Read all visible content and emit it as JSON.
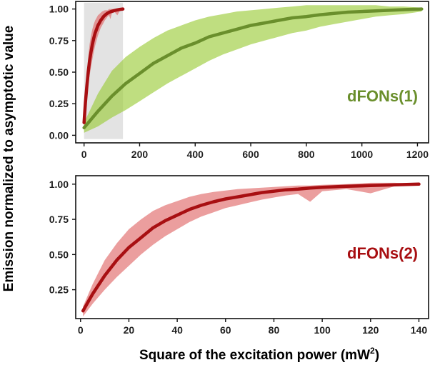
{
  "figure": {
    "shared_ylabel": "Emission normalized to asymptotic value",
    "shared_xlabel": "Square of the excitation power (mW",
    "shared_xlabel_sup": "2",
    "shared_xlabel_end": ")"
  },
  "chart_data": [
    {
      "type": "line",
      "annotation": "dFONs(1)",
      "xlim": [
        -30,
        1240
      ],
      "ylim": [
        -0.06,
        1.06
      ],
      "xticks": [
        0,
        200,
        400,
        600,
        800,
        1000,
        1200
      ],
      "xtick_labels": [
        "0",
        "200",
        "400",
        "600",
        "800",
        "1000",
        "1200"
      ],
      "yticks": [
        0.0,
        0.25,
        0.5,
        0.75,
        1.0
      ],
      "ytick_labels": [
        "0.00",
        "0.25",
        "0.50",
        "0.75",
        "1.00"
      ],
      "highlight_region": {
        "x": [
          0,
          140
        ],
        "y": [
          -0.03,
          1.05
        ]
      },
      "series": [
        {
          "color": "#6a8f2c",
          "band_color": "#9ccc3c",
          "x": [
            0,
            50,
            100,
            150,
            200,
            250,
            300,
            350,
            400,
            450,
            500,
            550,
            600,
            650,
            700,
            750,
            800,
            850,
            900,
            950,
            1000,
            1050,
            1100,
            1150,
            1215
          ],
          "y": [
            0.06,
            0.19,
            0.31,
            0.41,
            0.49,
            0.57,
            0.63,
            0.69,
            0.73,
            0.78,
            0.81,
            0.84,
            0.87,
            0.89,
            0.91,
            0.93,
            0.94,
            0.955,
            0.965,
            0.975,
            0.98,
            0.985,
            0.99,
            0.995,
            1.0
          ],
          "upper": [
            0.1,
            0.33,
            0.51,
            0.62,
            0.7,
            0.77,
            0.83,
            0.87,
            0.91,
            0.94,
            0.96,
            0.98,
            0.99,
            1.0,
            1.01,
            1.02,
            1.03,
            1.03,
            1.03,
            1.03,
            1.03,
            1.03,
            1.02,
            1.02,
            1.01
          ],
          "lower": [
            0.02,
            0.07,
            0.14,
            0.2,
            0.27,
            0.34,
            0.41,
            0.47,
            0.53,
            0.59,
            0.64,
            0.68,
            0.72,
            0.75,
            0.78,
            0.81,
            0.83,
            0.86,
            0.88,
            0.9,
            0.92,
            0.94,
            0.95,
            0.96,
            0.98
          ]
        },
        {
          "color": "#a80f12",
          "band_color": "#e06a6a",
          "x": [
            0,
            5,
            10,
            15,
            20,
            25,
            30,
            35,
            40,
            45,
            50,
            55,
            60,
            65,
            70,
            75,
            80,
            85,
            90,
            95,
            100,
            110,
            120,
            130,
            140
          ],
          "y": [
            0.1,
            0.26,
            0.39,
            0.5,
            0.59,
            0.66,
            0.72,
            0.77,
            0.81,
            0.84,
            0.87,
            0.89,
            0.91,
            0.925,
            0.94,
            0.95,
            0.96,
            0.967,
            0.973,
            0.978,
            0.982,
            0.988,
            0.993,
            0.997,
            1.0
          ],
          "upper": [
            0.13,
            0.32,
            0.49,
            0.62,
            0.72,
            0.79,
            0.84,
            0.88,
            0.91,
            0.93,
            0.95,
            0.96,
            0.97,
            0.98,
            0.985,
            0.99,
            0.99,
            0.99,
            1.0,
            1.0,
            1.0,
            1.0,
            1.0,
            1.0,
            1.0
          ],
          "lower": [
            0.07,
            0.2,
            0.3,
            0.39,
            0.47,
            0.54,
            0.6,
            0.66,
            0.71,
            0.75,
            0.79,
            0.82,
            0.85,
            0.87,
            0.89,
            0.91,
            0.925,
            0.94,
            0.95,
            0.92,
            0.965,
            0.975,
            0.95,
            0.99,
            1.0
          ]
        }
      ]
    },
    {
      "type": "line",
      "annotation": "dFONs(2)",
      "xlim": [
        -2,
        144
      ],
      "ylim": [
        0.045,
        1.06
      ],
      "xticks": [
        0,
        20,
        40,
        60,
        80,
        100,
        120,
        140
      ],
      "xtick_labels": [
        "0",
        "20",
        "40",
        "60",
        "80",
        "100",
        "120",
        "140"
      ],
      "yticks": [
        0.25,
        0.5,
        0.75,
        1.0
      ],
      "ytick_labels": [
        "0.25",
        "0.50",
        "0.75",
        "1.00"
      ],
      "series": [
        {
          "color": "#a80f12",
          "band_color": "#e06a6a",
          "x": [
            1,
            5,
            10,
            15,
            20,
            25,
            30,
            35,
            40,
            45,
            50,
            55,
            60,
            65,
            70,
            75,
            80,
            85,
            90,
            95,
            100,
            110,
            120,
            130,
            140
          ],
          "y": [
            0.1,
            0.22,
            0.35,
            0.46,
            0.55,
            0.62,
            0.69,
            0.74,
            0.78,
            0.82,
            0.85,
            0.875,
            0.895,
            0.91,
            0.925,
            0.94,
            0.95,
            0.96,
            0.965,
            0.972,
            0.978,
            0.985,
            0.99,
            0.995,
            1.0
          ],
          "upper": [
            0.13,
            0.29,
            0.46,
            0.58,
            0.68,
            0.75,
            0.81,
            0.85,
            0.88,
            0.91,
            0.93,
            0.945,
            0.955,
            0.965,
            0.97,
            0.975,
            0.98,
            0.985,
            0.99,
            0.99,
            0.995,
            1.0,
            1.01,
            1.01,
            1.0
          ],
          "lower": [
            0.06,
            0.15,
            0.25,
            0.34,
            0.42,
            0.5,
            0.57,
            0.63,
            0.68,
            0.73,
            0.77,
            0.8,
            0.83,
            0.85,
            0.87,
            0.89,
            0.905,
            0.92,
            0.93,
            0.875,
            0.95,
            0.965,
            0.935,
            0.985,
            1.0
          ]
        }
      ]
    }
  ]
}
